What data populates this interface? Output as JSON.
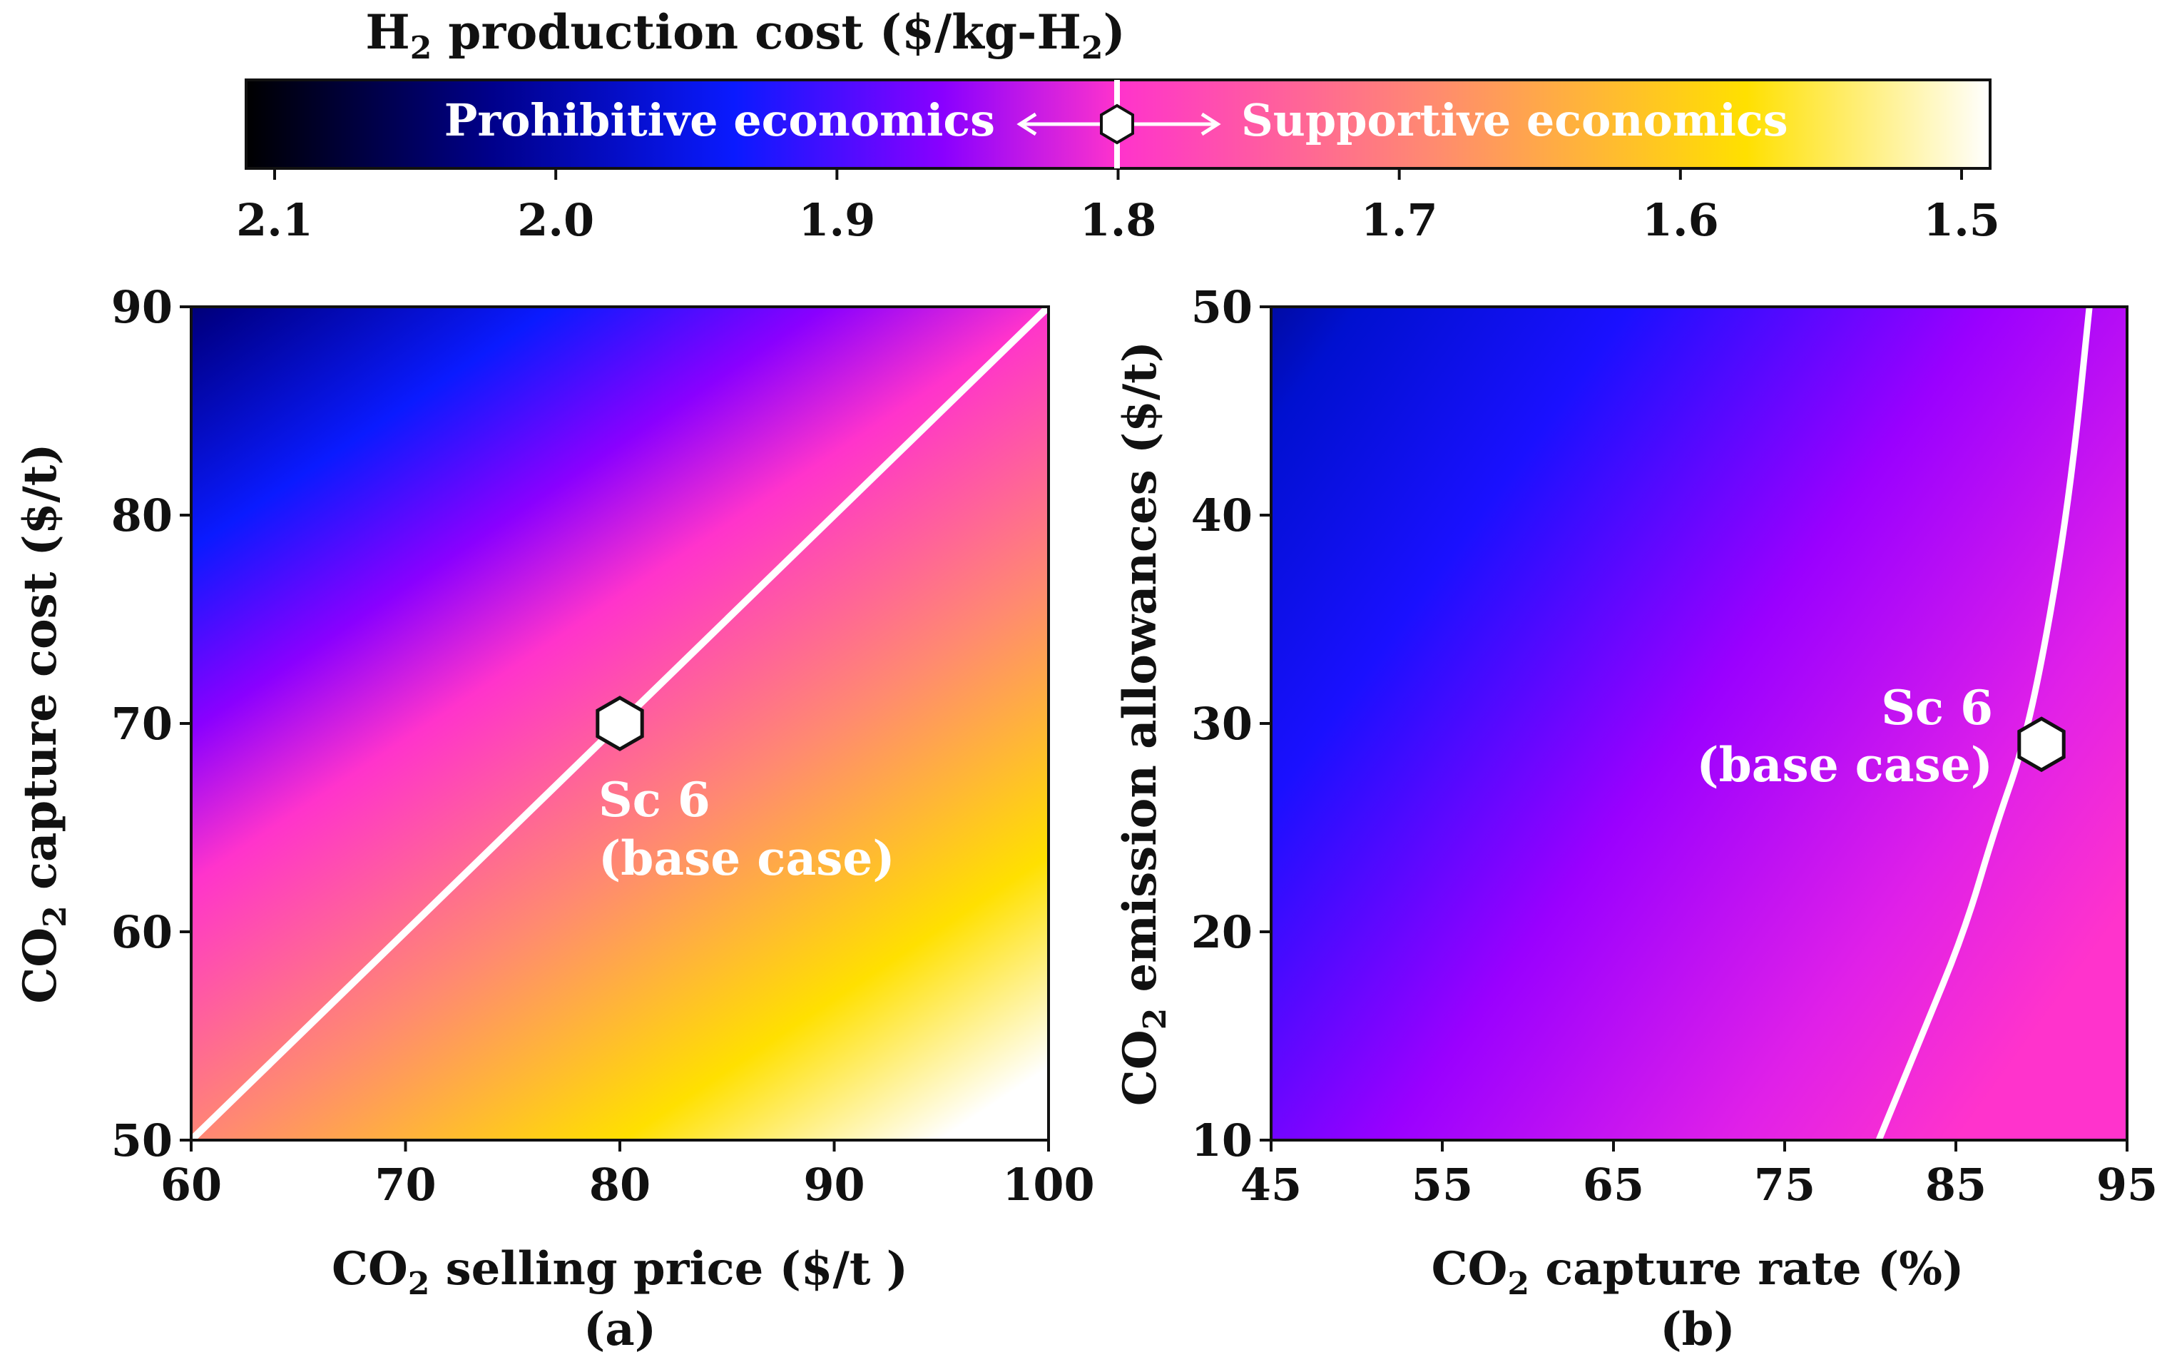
{
  "colormap": {
    "title_main": "H",
    "title_sub": "2",
    "title_rest": " production cost ($/kg-H",
    "title_sub2": "2",
    "title_end": ")",
    "ticks": [
      "2.1",
      "2.0",
      "1.9",
      "1.8",
      "1.7",
      "1.6",
      "1.5"
    ],
    "tick_values": [
      2.1,
      2.0,
      1.9,
      1.8,
      1.7,
      1.6,
      1.5
    ],
    "left_label": "Prohibitive economics",
    "right_label": "Supportive economics",
    "threshold": 1.8,
    "stops": [
      "#000000",
      "#0000a0",
      "#0a1aff",
      "#a500ff",
      "#ff33cc",
      "#ff8a70",
      "#ffe000",
      "#ffffff"
    ]
  },
  "chart_data": [
    {
      "type": "heatmap",
      "panel_label": "(a)",
      "xlabel_main": "CO",
      "xlabel_sub": "2",
      "xlabel_rest": " selling price ($/t )",
      "ylabel_main": "CO",
      "ylabel_sub": "2",
      "ylabel_rest": " capture cost ($/t)",
      "xlim": [
        60,
        100
      ],
      "ylim": [
        50,
        90
      ],
      "xticks": [
        "60",
        "70",
        "80",
        "90",
        "100"
      ],
      "yticks": [
        "50",
        "60",
        "70",
        "80",
        "90"
      ],
      "breakeven_line": [
        [
          60,
          50
        ],
        [
          100,
          90
        ]
      ],
      "marker": {
        "x": 80,
        "y": 70,
        "label1": "Sc 6",
        "label2": "(base case)"
      },
      "corner_values": {
        "top_left": 2.1,
        "bottom_right": 1.5
      }
    },
    {
      "type": "heatmap",
      "panel_label": "(b)",
      "xlabel_main": "CO",
      "xlabel_sub": "2",
      "xlabel_rest": " capture rate (%)",
      "ylabel_main": "CO",
      "ylabel_sub": "2",
      "ylabel_rest": " emission allowances ($/t)",
      "xlim": [
        45,
        95
      ],
      "ylim": [
        10,
        50
      ],
      "xticks": [
        "45",
        "55",
        "65",
        "75",
        "85",
        "95"
      ],
      "yticks": [
        "10",
        "20",
        "30",
        "40",
        "50"
      ],
      "breakeven_curve": [
        [
          80.5,
          10
        ],
        [
          83,
          15
        ],
        [
          85.5,
          20
        ],
        [
          87.3,
          25
        ],
        [
          89,
          29
        ],
        [
          90.5,
          35
        ],
        [
          91.8,
          42
        ],
        [
          92.8,
          50
        ]
      ],
      "marker": {
        "x": 90,
        "y": 29,
        "label1": "Sc 6",
        "label2": "(base case)"
      },
      "corner_values": {
        "top_left": 2.02,
        "bottom_right": 1.75
      }
    }
  ]
}
